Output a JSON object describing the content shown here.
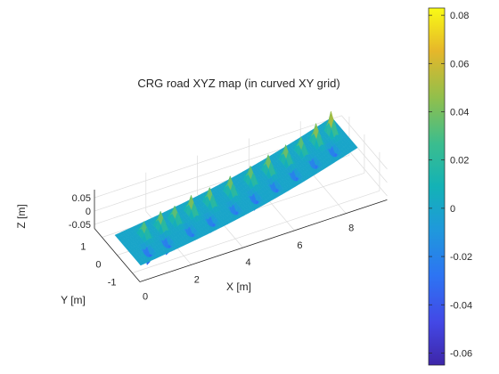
{
  "chart_data": {
    "type": "surface",
    "title": "CRG road XYZ map (in curved XY grid)",
    "xlabel": "X [m]",
    "ylabel": "Y [m]",
    "zlabel": "Z [m]",
    "xlim": [
      0,
      9.6
    ],
    "ylim": [
      -1.5,
      1.5
    ],
    "zlim": [
      -0.065,
      0.08
    ],
    "xticks": [
      0,
      2,
      4,
      6,
      8
    ],
    "yticks": [
      -1,
      0,
      1
    ],
    "zticks": [
      -0.05,
      0,
      0.05
    ],
    "xtick_labels": [
      "0",
      "2",
      "4",
      "6",
      "8"
    ],
    "ytick_labels": [
      "-1",
      "0",
      "1"
    ],
    "ztick_labels": [
      "-0.05",
      "0",
      "0.05"
    ],
    "grid": true,
    "colormap": "parula",
    "colorbar": {
      "range": [
        -0.065,
        0.083
      ],
      "ticks": [
        0.08,
        0.06,
        0.04,
        0.02,
        0,
        -0.02,
        -0.04,
        -0.06
      ],
      "tick_labels": [
        "0.08",
        "0.06",
        "0.04",
        "0.02",
        "0",
        "-0.02",
        "-0.04",
        "-0.06"
      ]
    },
    "road": {
      "x_range": [
        0,
        9.6
      ],
      "lateral_half_width": 0.85,
      "lateral_offset_at_start": 0.7,
      "lateral_offset_at_end": 1.3,
      "flat_level": 0,
      "bumps": [
        {
          "x": 0.9,
          "z": 0.05
        },
        {
          "x": 1.6,
          "z": 0.06
        },
        {
          "x": 2.2,
          "z": 0.055
        },
        {
          "x": 2.9,
          "z": 0.065
        },
        {
          "x": 3.7,
          "z": 0.06
        },
        {
          "x": 4.6,
          "z": 0.062
        },
        {
          "x": 5.5,
          "z": 0.058
        },
        {
          "x": 6.3,
          "z": 0.062
        },
        {
          "x": 7.1,
          "z": 0.06
        },
        {
          "x": 7.8,
          "z": 0.055
        },
        {
          "x": 8.5,
          "z": 0.07
        },
        {
          "x": 9.2,
          "z": 0.08
        }
      ],
      "dips": [
        {
          "x": 0.6,
          "z": -0.06
        },
        {
          "x": 1.4,
          "z": -0.055
        },
        {
          "x": 2.4,
          "z": -0.05
        },
        {
          "x": 3.3,
          "z": -0.052
        },
        {
          "x": 4.3,
          "z": -0.05
        },
        {
          "x": 5.2,
          "z": -0.055
        },
        {
          "x": 6.1,
          "z": -0.05
        },
        {
          "x": 7.0,
          "z": -0.052
        },
        {
          "x": 7.9,
          "z": -0.05
        },
        {
          "x": 8.8,
          "z": -0.055
        }
      ]
    }
  }
}
